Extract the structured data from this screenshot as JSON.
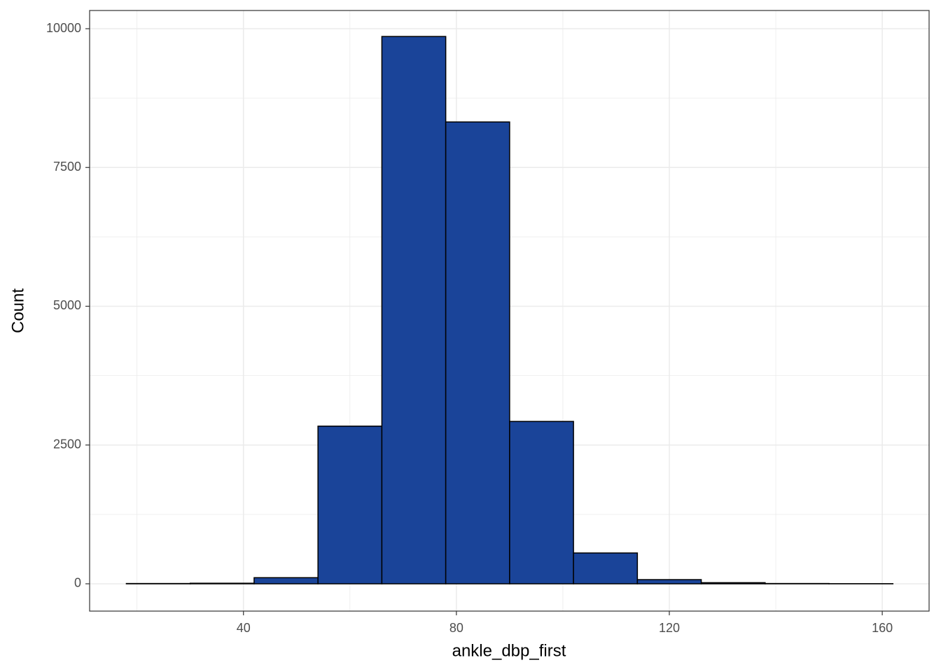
{
  "chart_data": {
    "type": "histogram",
    "x_label": "ankle_dbp_first",
    "y_label": "Count",
    "bins": [
      18,
      30,
      42,
      54,
      66,
      78,
      90,
      102,
      114,
      126,
      138,
      150,
      162
    ],
    "values": [
      5,
      10,
      110,
      2840,
      9860,
      8320,
      2925,
      555,
      75,
      20,
      5,
      2
    ],
    "color": "#1a4499",
    "edge_color": "#000000",
    "xlim": [
      11.1,
      168.8
    ],
    "ylim": [
      -492,
      10328
    ],
    "xticks": [
      40,
      80,
      120,
      160
    ],
    "yticks": [
      0,
      2500,
      5000,
      7500,
      10000
    ],
    "minor_xticks": [
      20,
      60,
      100,
      140
    ],
    "minor_yticks": [
      1250,
      3750,
      6250,
      8750
    ],
    "grid": true
  }
}
